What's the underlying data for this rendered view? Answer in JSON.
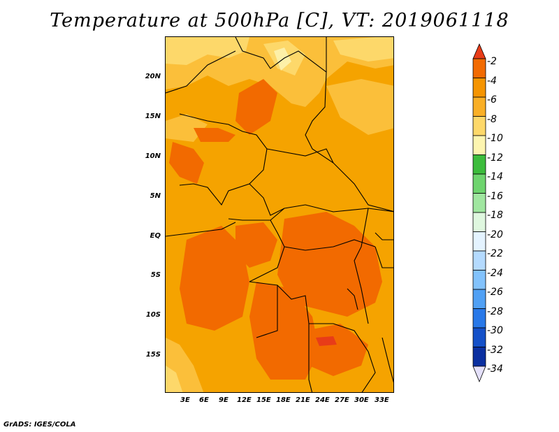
{
  "title": "Temperature at 500hPa [C], VT: 2019061118",
  "credit": "GrADS: IGES/COLA",
  "lat_labels": [
    "20N",
    "15N",
    "10N",
    "5N",
    "EQ",
    "5S",
    "10S",
    "15S"
  ],
  "lon_labels": [
    "3E",
    "6E",
    "9E",
    "12E",
    "15E",
    "18E",
    "21E",
    "24E",
    "27E",
    "30E",
    "33E"
  ],
  "colorbar": {
    "labels": [
      "-2",
      "-4",
      "-6",
      "-8",
      "-10",
      "-12",
      "-14",
      "-16",
      "-18",
      "-20",
      "-22",
      "-24",
      "-26",
      "-28",
      "-30",
      "-32",
      "-34"
    ],
    "colors": [
      "#e83c18",
      "#f26a00",
      "#f59400",
      "#f9af26",
      "#fdd86a",
      "#fdf5b0",
      "#3cbc3c",
      "#6ed46e",
      "#a0e6a0",
      "#dff7df",
      "#e4f3ff",
      "#b4dafe",
      "#82c2fc",
      "#50a0f4",
      "#2878e8",
      "#1450c8",
      "#0a2fa0",
      "#0a0a6e"
    ],
    "over_color": "#e83c18",
    "under_color": "#e4e0fa"
  }
}
